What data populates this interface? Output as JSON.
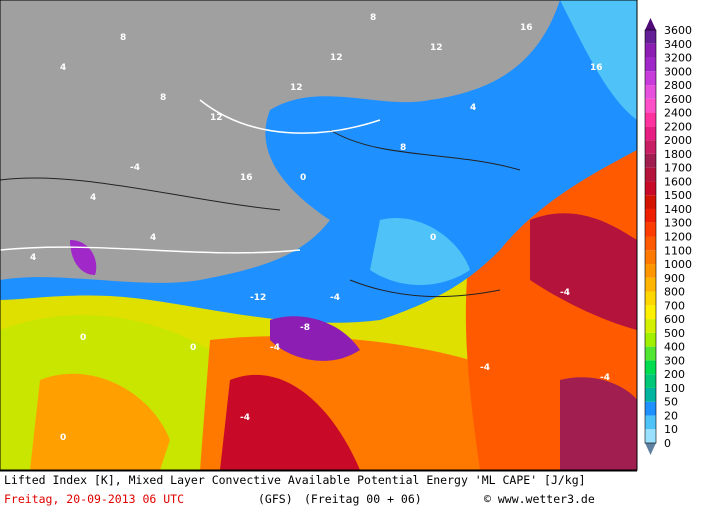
{
  "map": {
    "colorbar": {
      "labels": [
        "0",
        "10",
        "20",
        "50",
        "100",
        "200",
        "300",
        "400",
        "500",
        "600",
        "700",
        "800",
        "900",
        "1000",
        "1100",
        "1200",
        "1300",
        "1400",
        "1500",
        "1600",
        "1700",
        "1800",
        "2000",
        "2200",
        "2400",
        "2600",
        "2800",
        "3000",
        "3200",
        "3400",
        "3600"
      ],
      "colors": [
        "#9be1ff",
        "#4fc3f7",
        "#1e90ff",
        "#00b4a0",
        "#00c878",
        "#00dc50",
        "#50e632",
        "#a0f000",
        "#d2f000",
        "#fff000",
        "#ffd700",
        "#ffb400",
        "#ff9600",
        "#ff7800",
        "#ff5a00",
        "#ff3c00",
        "#f01e00",
        "#d21400",
        "#c80a28",
        "#b4143c",
        "#a01e50",
        "#c81e64",
        "#e61e82",
        "#ff32a0",
        "#ff50c8",
        "#e650dc",
        "#c83cdc",
        "#a028c8",
        "#8c1eb4",
        "#641e96"
      ]
    },
    "contour_labels": [
      "4",
      "8",
      "12",
      "16",
      "12",
      "8",
      "4",
      "0",
      "-4",
      "4",
      "8",
      "12",
      "16",
      "0",
      "-4",
      "-8",
      "-12",
      "-4",
      "0",
      "4",
      "-4",
      "-4",
      "0",
      "8",
      "12",
      "-4",
      "-4",
      "0",
      "4",
      "16"
    ]
  },
  "footer": {
    "line1": "Lifted Index [K], Mixed Layer Convective Available Potential Energy 'ML CAPE' [J/kg]",
    "date": "Freitag, 20-09-2013  06 UTC",
    "model": "(GFS)",
    "run": "(Freitag 00 + 06)",
    "copyright": "© www.wetter3.de"
  }
}
